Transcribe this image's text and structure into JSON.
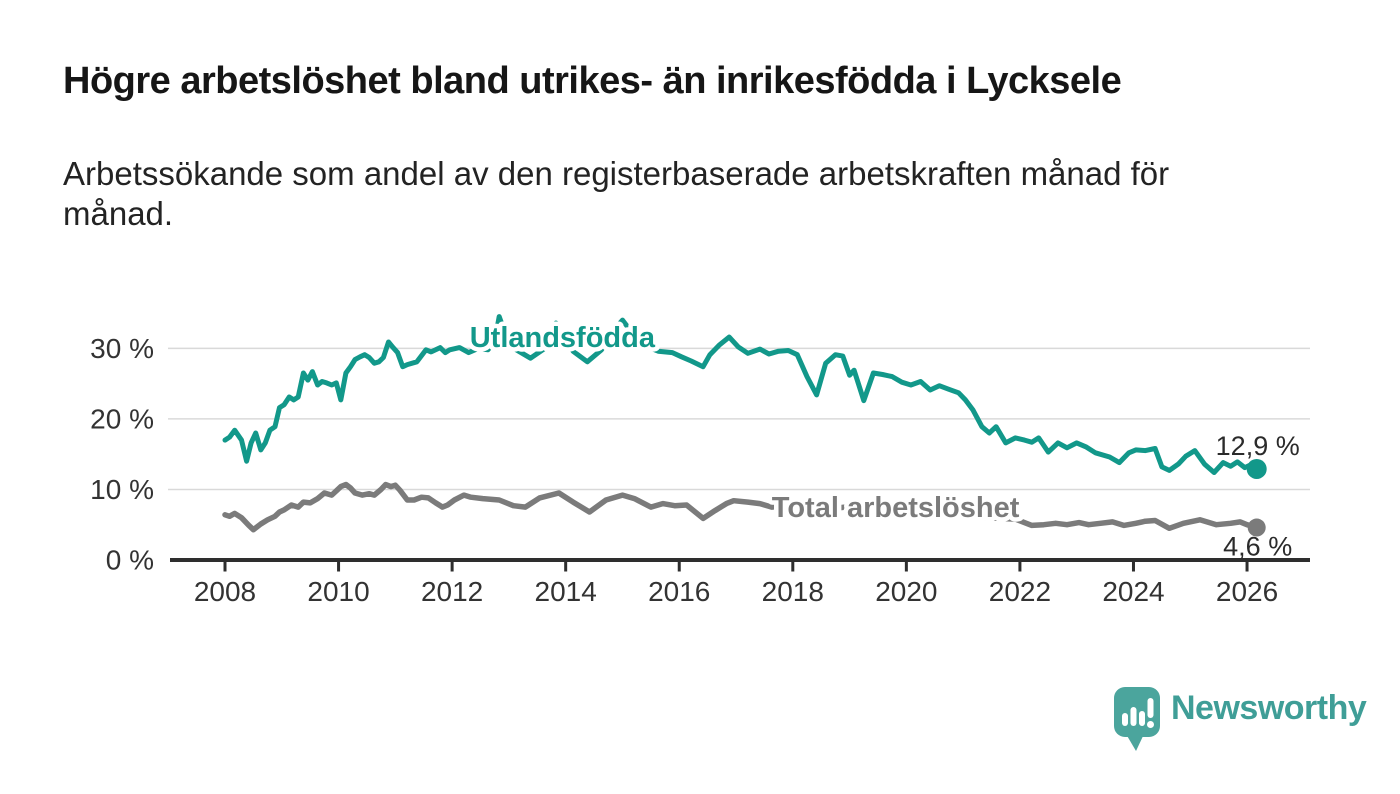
{
  "header": {
    "title": "Högre arbetslöshet bland utrikes- än inrikesfödda i Lycksele",
    "subtitle": "Arbetssökande som andel av den registerbaserade arbetskraften månad för\nmånad."
  },
  "branding": {
    "logo_text": "Newsworthy",
    "logo_icon": "speech-bubble-bar-chart",
    "logo_bubble_color": "#4ba59d",
    "logo_text_color": "#3f9e97"
  },
  "chart_data": {
    "type": "line",
    "title": "Högre arbetslöshet bland utrikes- än inrikesfödda i Lycksele",
    "subtitle": "Arbetssökande som andel av den registerbaserade arbetskraften månad för månad.",
    "grid": "horizontal",
    "grid_color": "#d9d9d9",
    "axis_color": "#2e2e2e",
    "tick_label_color": "#333333",
    "value_label_color": "#2b2b2b",
    "x_axis": {
      "range": [
        2007.0,
        2027.1
      ],
      "ticks": [
        2008,
        2010,
        2012,
        2014,
        2016,
        2018,
        2020,
        2022,
        2024,
        2026
      ],
      "tick_labels": [
        "2008",
        "2010",
        "2012",
        "2014",
        "2016",
        "2018",
        "2020",
        "2022",
        "2024",
        "2026"
      ]
    },
    "y_axis": {
      "unit": "%",
      "range": [
        0,
        35
      ],
      "ticks": [
        0,
        10,
        20,
        30
      ],
      "tick_labels": [
        "0 %",
        "10 %",
        "20 %",
        "30 %"
      ]
    },
    "series": [
      {
        "name": "Utlandsfödda",
        "color": "#12988a",
        "line_width": 5,
        "end_value": 12.9,
        "end_label": "12,9 %",
        "end_label_position": "above",
        "label_anchor": [
          2012.31,
          30.2
        ],
        "points": [
          [
            2008.0,
            17.0
          ],
          [
            2008.08,
            17.4
          ],
          [
            2008.17,
            18.4
          ],
          [
            2008.29,
            17.0
          ],
          [
            2008.38,
            14.0
          ],
          [
            2008.46,
            16.6
          ],
          [
            2008.54,
            18.0
          ],
          [
            2008.63,
            15.6
          ],
          [
            2008.71,
            16.6
          ],
          [
            2008.79,
            18.4
          ],
          [
            2008.88,
            18.9
          ],
          [
            2008.96,
            21.6
          ],
          [
            2009.04,
            22.0
          ],
          [
            2009.13,
            23.1
          ],
          [
            2009.21,
            22.7
          ],
          [
            2009.29,
            23.1
          ],
          [
            2009.38,
            26.5
          ],
          [
            2009.46,
            25.5
          ],
          [
            2009.54,
            26.7
          ],
          [
            2009.63,
            24.8
          ],
          [
            2009.71,
            25.3
          ],
          [
            2009.79,
            25.1
          ],
          [
            2009.88,
            24.8
          ],
          [
            2009.96,
            25.1
          ],
          [
            2010.04,
            22.7
          ],
          [
            2010.13,
            26.5
          ],
          [
            2010.21,
            27.4
          ],
          [
            2010.29,
            28.4
          ],
          [
            2010.38,
            28.8
          ],
          [
            2010.46,
            29.1
          ],
          [
            2010.54,
            28.7
          ],
          [
            2010.63,
            27.9
          ],
          [
            2010.71,
            28.1
          ],
          [
            2010.79,
            28.7
          ],
          [
            2010.88,
            30.9
          ],
          [
            2010.96,
            30.1
          ],
          [
            2011.04,
            29.4
          ],
          [
            2011.13,
            27.4
          ],
          [
            2011.21,
            27.7
          ],
          [
            2011.38,
            28.1
          ],
          [
            2011.54,
            29.8
          ],
          [
            2011.63,
            29.5
          ],
          [
            2011.79,
            30.1
          ],
          [
            2011.88,
            29.4
          ],
          [
            2011.96,
            29.8
          ],
          [
            2012.13,
            30.1
          ],
          [
            2012.29,
            29.4
          ],
          [
            2012.46,
            30.0
          ],
          [
            2012.63,
            29.8
          ],
          [
            2012.75,
            31.0
          ],
          [
            2012.83,
            34.5
          ],
          [
            2012.96,
            31.5
          ],
          [
            2013.13,
            29.8
          ],
          [
            2013.38,
            28.6
          ],
          [
            2013.63,
            30.0
          ],
          [
            2013.83,
            33.6
          ],
          [
            2013.96,
            31.8
          ],
          [
            2014.13,
            29.6
          ],
          [
            2014.38,
            28.1
          ],
          [
            2014.63,
            29.8
          ],
          [
            2014.88,
            32.9
          ],
          [
            2015.0,
            34.0
          ],
          [
            2015.17,
            32.2
          ],
          [
            2015.38,
            30.4
          ],
          [
            2015.63,
            29.6
          ],
          [
            2015.88,
            29.4
          ],
          [
            2016.04,
            28.8
          ],
          [
            2016.21,
            28.2
          ],
          [
            2016.42,
            27.4
          ],
          [
            2016.54,
            29.1
          ],
          [
            2016.71,
            30.5
          ],
          [
            2016.88,
            31.6
          ],
          [
            2017.04,
            30.2
          ],
          [
            2017.21,
            29.3
          ],
          [
            2017.42,
            29.9
          ],
          [
            2017.58,
            29.2
          ],
          [
            2017.75,
            29.6
          ],
          [
            2017.92,
            29.7
          ],
          [
            2018.08,
            29.1
          ],
          [
            2018.25,
            26.0
          ],
          [
            2018.42,
            23.4
          ],
          [
            2018.58,
            27.9
          ],
          [
            2018.75,
            29.1
          ],
          [
            2018.88,
            28.9
          ],
          [
            2019.0,
            26.2
          ],
          [
            2019.08,
            26.9
          ],
          [
            2019.25,
            22.6
          ],
          [
            2019.42,
            26.5
          ],
          [
            2019.58,
            26.3
          ],
          [
            2019.75,
            26.0
          ],
          [
            2019.92,
            25.2
          ],
          [
            2020.08,
            24.8
          ],
          [
            2020.25,
            25.3
          ],
          [
            2020.42,
            24.1
          ],
          [
            2020.58,
            24.7
          ],
          [
            2020.75,
            24.2
          ],
          [
            2020.92,
            23.7
          ],
          [
            2021.04,
            22.7
          ],
          [
            2021.17,
            21.3
          ],
          [
            2021.33,
            18.9
          ],
          [
            2021.46,
            18.0
          ],
          [
            2021.58,
            18.9
          ],
          [
            2021.75,
            16.6
          ],
          [
            2021.92,
            17.3
          ],
          [
            2022.08,
            17.0
          ],
          [
            2022.21,
            16.7
          ],
          [
            2022.33,
            17.3
          ],
          [
            2022.5,
            15.3
          ],
          [
            2022.67,
            16.6
          ],
          [
            2022.83,
            15.9
          ],
          [
            2023.0,
            16.6
          ],
          [
            2023.17,
            16.0
          ],
          [
            2023.33,
            15.2
          ],
          [
            2023.58,
            14.6
          ],
          [
            2023.75,
            13.8
          ],
          [
            2023.92,
            15.2
          ],
          [
            2024.04,
            15.6
          ],
          [
            2024.21,
            15.5
          ],
          [
            2024.38,
            15.8
          ],
          [
            2024.5,
            13.2
          ],
          [
            2024.63,
            12.7
          ],
          [
            2024.79,
            13.6
          ],
          [
            2024.92,
            14.7
          ],
          [
            2025.08,
            15.5
          ],
          [
            2025.25,
            13.6
          ],
          [
            2025.42,
            12.4
          ],
          [
            2025.58,
            13.8
          ],
          [
            2025.71,
            13.3
          ],
          [
            2025.83,
            13.9
          ],
          [
            2025.96,
            13.1
          ],
          [
            2026.04,
            13.4
          ],
          [
            2026.17,
            12.9
          ]
        ]
      },
      {
        "name": "Total arbetslöshet",
        "color": "#7b7b7b",
        "line_width": 5.5,
        "end_value": 4.6,
        "end_label": "4,6 %",
        "end_label_position": "below",
        "label_anchor": [
          2017.63,
          6.1
        ],
        "points": [
          [
            2008.0,
            6.4
          ],
          [
            2008.08,
            6.2
          ],
          [
            2008.17,
            6.6
          ],
          [
            2008.29,
            6.0
          ],
          [
            2008.42,
            4.9
          ],
          [
            2008.5,
            4.3
          ],
          [
            2008.63,
            5.1
          ],
          [
            2008.75,
            5.7
          ],
          [
            2008.88,
            6.2
          ],
          [
            2008.96,
            6.8
          ],
          [
            2009.04,
            7.1
          ],
          [
            2009.17,
            7.8
          ],
          [
            2009.29,
            7.5
          ],
          [
            2009.38,
            8.2
          ],
          [
            2009.5,
            8.1
          ],
          [
            2009.63,
            8.7
          ],
          [
            2009.75,
            9.5
          ],
          [
            2009.88,
            9.2
          ],
          [
            2009.96,
            9.8
          ],
          [
            2010.04,
            10.4
          ],
          [
            2010.13,
            10.7
          ],
          [
            2010.21,
            10.2
          ],
          [
            2010.29,
            9.5
          ],
          [
            2010.42,
            9.2
          ],
          [
            2010.54,
            9.4
          ],
          [
            2010.63,
            9.2
          ],
          [
            2010.75,
            10.0
          ],
          [
            2010.83,
            10.7
          ],
          [
            2010.92,
            10.4
          ],
          [
            2011.0,
            10.6
          ],
          [
            2011.08,
            9.9
          ],
          [
            2011.21,
            8.5
          ],
          [
            2011.33,
            8.5
          ],
          [
            2011.46,
            8.9
          ],
          [
            2011.58,
            8.8
          ],
          [
            2011.71,
            8.1
          ],
          [
            2011.83,
            7.5
          ],
          [
            2011.92,
            7.8
          ],
          [
            2012.04,
            8.5
          ],
          [
            2012.21,
            9.2
          ],
          [
            2012.33,
            8.9
          ],
          [
            2012.54,
            8.7
          ],
          [
            2012.83,
            8.5
          ],
          [
            2013.08,
            7.7
          ],
          [
            2013.29,
            7.5
          ],
          [
            2013.54,
            8.8
          ],
          [
            2013.88,
            9.5
          ],
          [
            2014.13,
            8.2
          ],
          [
            2014.42,
            6.8
          ],
          [
            2014.71,
            8.5
          ],
          [
            2015.0,
            9.2
          ],
          [
            2015.21,
            8.7
          ],
          [
            2015.5,
            7.5
          ],
          [
            2015.71,
            8.0
          ],
          [
            2015.92,
            7.7
          ],
          [
            2016.13,
            7.8
          ],
          [
            2016.42,
            5.9
          ],
          [
            2016.63,
            7.0
          ],
          [
            2016.83,
            8.0
          ],
          [
            2016.96,
            8.4
          ],
          [
            2017.21,
            8.2
          ],
          [
            2017.42,
            8.0
          ],
          [
            2017.63,
            7.5
          ],
          [
            2017.83,
            7.7
          ],
          [
            2018.04,
            7.8
          ],
          [
            2018.42,
            6.8
          ],
          [
            2018.71,
            7.3
          ],
          [
            2018.92,
            7.5
          ],
          [
            2019.42,
            6.5
          ],
          [
            2019.92,
            7.0
          ],
          [
            2020.42,
            6.8
          ],
          [
            2020.92,
            6.5
          ],
          [
            2021.42,
            6.0
          ],
          [
            2021.92,
            5.8
          ],
          [
            2022.21,
            4.9
          ],
          [
            2022.42,
            5.0
          ],
          [
            2022.63,
            5.2
          ],
          [
            2022.83,
            5.0
          ],
          [
            2023.04,
            5.3
          ],
          [
            2023.21,
            5.0
          ],
          [
            2023.42,
            5.2
          ],
          [
            2023.63,
            5.4
          ],
          [
            2023.83,
            4.9
          ],
          [
            2024.04,
            5.2
          ],
          [
            2024.21,
            5.5
          ],
          [
            2024.38,
            5.6
          ],
          [
            2024.63,
            4.5
          ],
          [
            2024.88,
            5.2
          ],
          [
            2025.17,
            5.7
          ],
          [
            2025.46,
            5.0
          ],
          [
            2025.71,
            5.2
          ],
          [
            2025.88,
            5.4
          ],
          [
            2026.0,
            5.0
          ],
          [
            2026.17,
            4.6
          ]
        ]
      }
    ]
  }
}
